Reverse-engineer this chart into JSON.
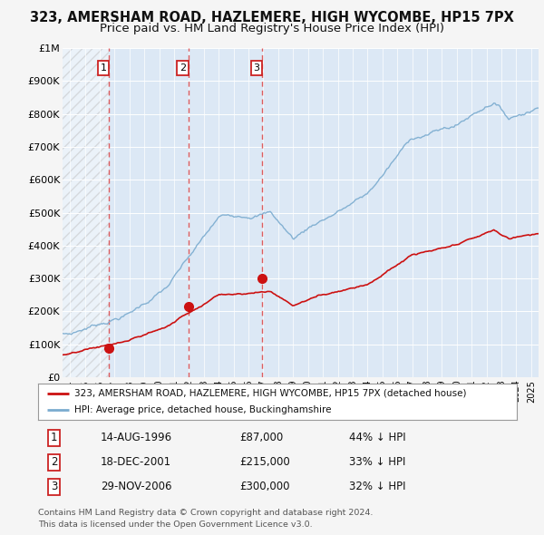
{
  "title": "323, AMERSHAM ROAD, HAZLEMERE, HIGH WYCOMBE, HP15 7PX",
  "subtitle": "Price paid vs. HM Land Registry's House Price Index (HPI)",
  "ylim": [
    0,
    1000000
  ],
  "yticks": [
    0,
    100000,
    200000,
    300000,
    400000,
    500000,
    600000,
    700000,
    800000,
    900000,
    1000000
  ],
  "ytick_labels": [
    "£0",
    "£100K",
    "£200K",
    "£300K",
    "£400K",
    "£500K",
    "£600K",
    "£700K",
    "£800K",
    "£900K",
    "£1M"
  ],
  "xlim_start": 1993.5,
  "xlim_end": 2025.5,
  "xticks": [
    1994,
    1995,
    1996,
    1997,
    1998,
    1999,
    2000,
    2001,
    2002,
    2003,
    2004,
    2005,
    2006,
    2007,
    2008,
    2009,
    2010,
    2011,
    2012,
    2013,
    2014,
    2015,
    2016,
    2017,
    2018,
    2019,
    2020,
    2021,
    2022,
    2023,
    2024,
    2025
  ],
  "sale_dates": [
    1996.617,
    2001.962,
    2006.912
  ],
  "sale_prices": [
    87000,
    215000,
    300000
  ],
  "sale_labels": [
    "1",
    "2",
    "3"
  ],
  "sale_date_strs": [
    "14-AUG-1996",
    "18-DEC-2001",
    "29-NOV-2006"
  ],
  "sale_price_strs": [
    "£87,000",
    "£215,000",
    "£300,000"
  ],
  "sale_hpi_strs": [
    "44% ↓ HPI",
    "33% ↓ HPI",
    "32% ↓ HPI"
  ],
  "hpi_color": "#7aabcf",
  "price_color": "#cc1111",
  "vline_color": "#dd4444",
  "background_color": "#f5f5f5",
  "plot_bg_color": "#dce8f5",
  "legend_label_price": "323, AMERSHAM ROAD, HAZLEMERE, HIGH WYCOMBE, HP15 7PX (detached house)",
  "legend_label_hpi": "HPI: Average price, detached house, Buckinghamshire",
  "footnote": "Contains HM Land Registry data © Crown copyright and database right 2024.\nThis data is licensed under the Open Government Licence v3.0.",
  "title_fontsize": 10.5,
  "subtitle_fontsize": 9.5
}
